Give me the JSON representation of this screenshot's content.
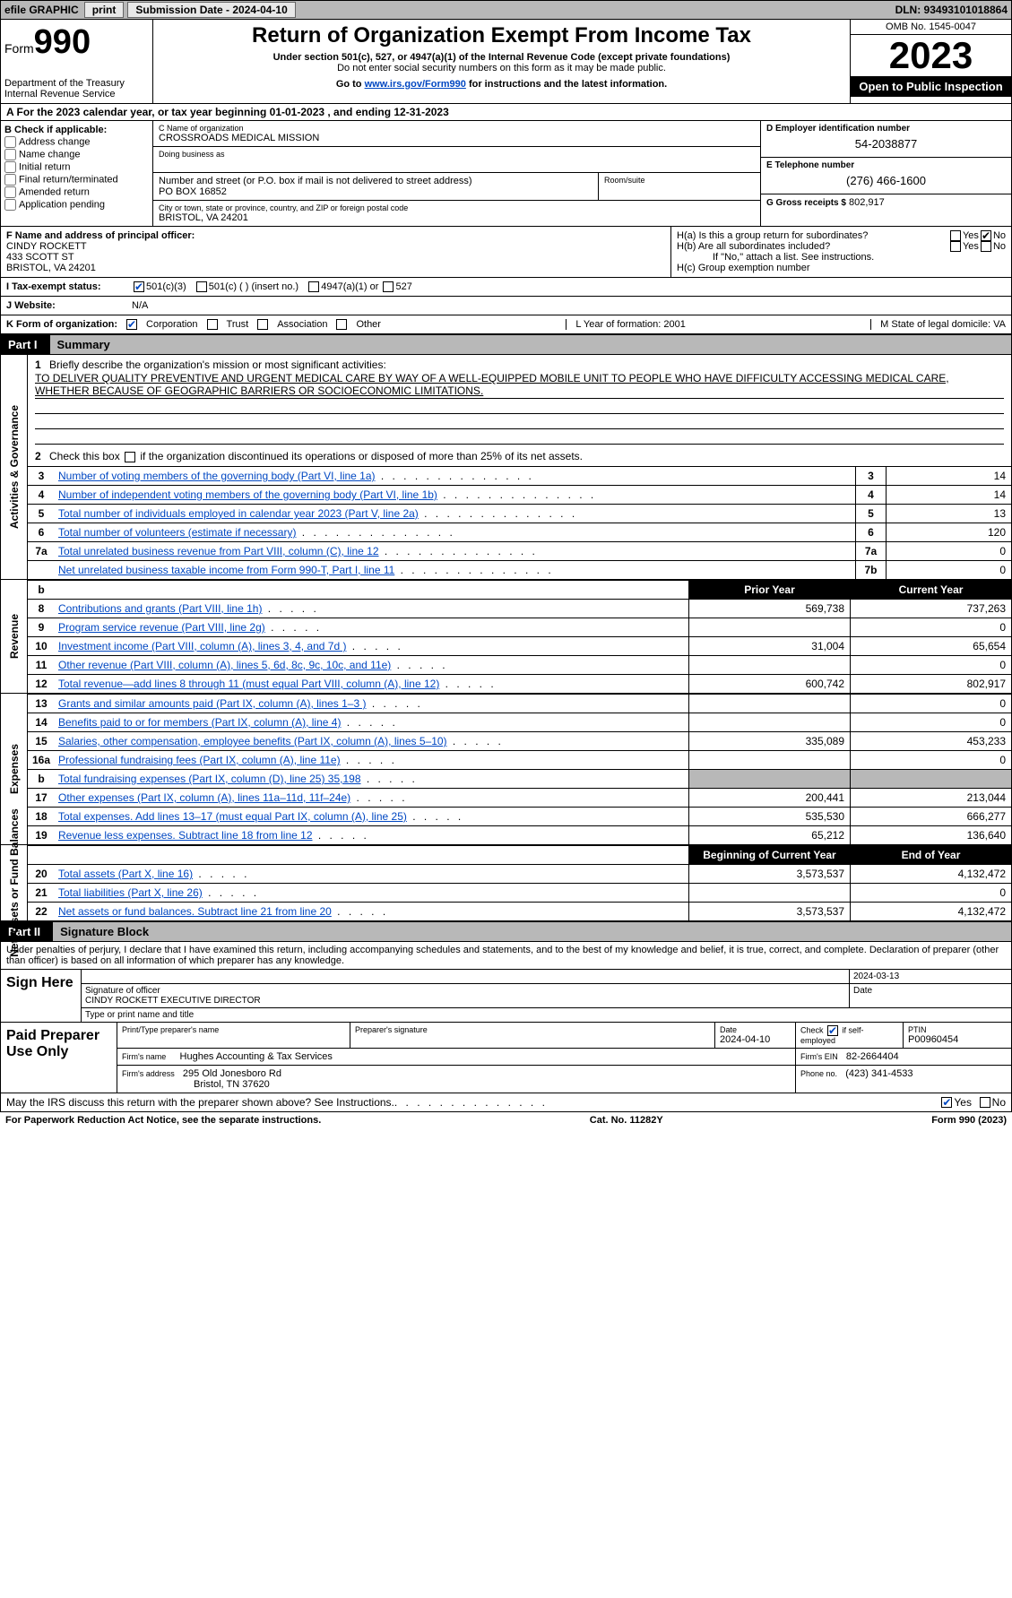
{
  "topbar": {
    "efile": "efile GRAPHIC",
    "print": "print",
    "sub_label": "Submission Date - 2024-04-10",
    "dln": "DLN: 93493101018864"
  },
  "header": {
    "form_word": "Form",
    "form_num": "990",
    "dept": "Department of the Treasury",
    "irs": "Internal Revenue Service",
    "title": "Return of Organization Exempt From Income Tax",
    "sub1": "Under section 501(c), 527, or 4947(a)(1) of the Internal Revenue Code (except private foundations)",
    "sub2": "Do not enter social security numbers on this form as it may be made public.",
    "sub3_pre": "Go to ",
    "sub3_link": "www.irs.gov/Form990",
    "sub3_post": " for instructions and the latest information.",
    "omb": "OMB No. 1545-0047",
    "year": "2023",
    "open": "Open to Public Inspection"
  },
  "period": "A For the 2023 calendar year, or tax year beginning 01-01-2023   , and ending 12-31-2023",
  "boxB": {
    "hdr": "B Check if applicable:",
    "opts": [
      "Address change",
      "Name change",
      "Initial return",
      "Final return/terminated",
      "Amended return",
      "Application pending"
    ]
  },
  "boxC": {
    "lbl_name": "C Name of organization",
    "org": "CROSSROADS MEDICAL MISSION",
    "lbl_dba": "Doing business as",
    "lbl_addr": "Number and street (or P.O. box if mail is not delivered to street address)",
    "addr": "PO BOX 16852",
    "lbl_suite": "Room/suite",
    "lbl_city": "City or town, state or province, country, and ZIP or foreign postal code",
    "city": "BRISTOL, VA  24201"
  },
  "boxD": {
    "lbl_ein": "D Employer identification number",
    "ein": "54-2038877",
    "lbl_phone": "E Telephone number",
    "phone": "(276) 466-1600",
    "lbl_gross": "G Gross receipts $",
    "gross": "802,917"
  },
  "officer": {
    "lbl": "F  Name and address of principal officer:",
    "name": "CINDY ROCKETT",
    "addr1": "433 SCOTT ST",
    "addr2": "BRISTOL, VA  24201",
    "ha": "H(a)  Is this a group return for subordinates?",
    "hb": "H(b)  Are all subordinates included?",
    "hb_note": "If \"No,\" attach a list. See instructions.",
    "hc": "H(c)  Group exemption number  ",
    "yes": "Yes",
    "no": "No"
  },
  "status": {
    "lbl": "I   Tax-exempt status:",
    "o1": "501(c)(3)",
    "o2": "501(c) (  ) (insert no.)",
    "o3": "4947(a)(1) or",
    "o4": "527"
  },
  "website": {
    "lbl": "J   Website:",
    "val": "N/A"
  },
  "formorg": {
    "k": "K Form of organization:",
    "corp": "Corporation",
    "trust": "Trust",
    "assoc": "Association",
    "other": "Other",
    "l": "L Year of formation: 2001",
    "m": "M State of legal domicile: VA"
  },
  "part1": {
    "num": "Part I",
    "title": "Summary"
  },
  "mission": {
    "q": "Briefly describe the organization's mission or most significant activities:",
    "text": "TO DELIVER QUALITY PREVENTIVE AND URGENT MEDICAL CARE BY WAY OF A WELL-EQUIPPED MOBILE UNIT TO PEOPLE WHO HAVE DIFFICULTY ACCESSING MEDICAL CARE, WHETHER BECAUSE OF GEOGRAPHIC BARRIERS OR SOCIOECONOMIC LIMITATIONS."
  },
  "line2": "Check this box       if the organization discontinued its operations or disposed of more than 25% of its net assets.",
  "tabs": {
    "gov": "Activities & Governance",
    "rev": "Revenue",
    "exp": "Expenses",
    "net": "Net Assets or Fund Balances"
  },
  "govlines": [
    {
      "n": "3",
      "d": "Number of voting members of the governing body (Part VI, line 1a)",
      "k": "3",
      "v": "14"
    },
    {
      "n": "4",
      "d": "Number of independent voting members of the governing body (Part VI, line 1b)",
      "k": "4",
      "v": "14"
    },
    {
      "n": "5",
      "d": "Total number of individuals employed in calendar year 2023 (Part V, line 2a)",
      "k": "5",
      "v": "13"
    },
    {
      "n": "6",
      "d": "Total number of volunteers (estimate if necessary)",
      "k": "6",
      "v": "120"
    },
    {
      "n": "7a",
      "d": "Total unrelated business revenue from Part VIII, column (C), line 12",
      "k": "7a",
      "v": "0"
    },
    {
      "n": "",
      "d": "Net unrelated business taxable income from Form 990-T, Part I, line 11",
      "k": "7b",
      "v": "0"
    }
  ],
  "colhdrs": {
    "b": "b",
    "prior": "Prior Year",
    "curr": "Current Year"
  },
  "revlines": [
    {
      "n": "8",
      "d": "Contributions and grants (Part VIII, line 1h)",
      "p": "569,738",
      "c": "737,263"
    },
    {
      "n": "9",
      "d": "Program service revenue (Part VIII, line 2g)",
      "p": "",
      "c": "0"
    },
    {
      "n": "10",
      "d": "Investment income (Part VIII, column (A), lines 3, 4, and 7d )",
      "p": "31,004",
      "c": "65,654"
    },
    {
      "n": "11",
      "d": "Other revenue (Part VIII, column (A), lines 5, 6d, 8c, 9c, 10c, and 11e)",
      "p": "",
      "c": "0"
    },
    {
      "n": "12",
      "d": "Total revenue—add lines 8 through 11 (must equal Part VIII, column (A), line 12)",
      "p": "600,742",
      "c": "802,917"
    }
  ],
  "explines": [
    {
      "n": "13",
      "d": "Grants and similar amounts paid (Part IX, column (A), lines 1–3 )",
      "p": "",
      "c": "0"
    },
    {
      "n": "14",
      "d": "Benefits paid to or for members (Part IX, column (A), line 4)",
      "p": "",
      "c": "0"
    },
    {
      "n": "15",
      "d": "Salaries, other compensation, employee benefits (Part IX, column (A), lines 5–10)",
      "p": "335,089",
      "c": "453,233"
    },
    {
      "n": "16a",
      "d": "Professional fundraising fees (Part IX, column (A), line 11e)",
      "p": "",
      "c": "0"
    },
    {
      "n": "b",
      "d": "Total fundraising expenses (Part IX, column (D), line 25) 35,198",
      "p": "shade",
      "c": "shade"
    },
    {
      "n": "17",
      "d": "Other expenses (Part IX, column (A), lines 11a–11d, 11f–24e)",
      "p": "200,441",
      "c": "213,044"
    },
    {
      "n": "18",
      "d": "Total expenses. Add lines 13–17 (must equal Part IX, column (A), line 25)",
      "p": "535,530",
      "c": "666,277"
    },
    {
      "n": "19",
      "d": "Revenue less expenses. Subtract line 18 from line 12",
      "p": "65,212",
      "c": "136,640"
    }
  ],
  "nethdrs": {
    "beg": "Beginning of Current Year",
    "end": "End of Year"
  },
  "netlines": [
    {
      "n": "20",
      "d": "Total assets (Part X, line 16)",
      "p": "3,573,537",
      "c": "4,132,472"
    },
    {
      "n": "21",
      "d": "Total liabilities (Part X, line 26)",
      "p": "",
      "c": "0"
    },
    {
      "n": "22",
      "d": "Net assets or fund balances. Subtract line 21 from line 20",
      "p": "3,573,537",
      "c": "4,132,472"
    }
  ],
  "part2": {
    "num": "Part II",
    "title": "Signature Block"
  },
  "sig": {
    "intro": "Under penalties of perjury, I declare that I have examined this return, including accompanying schedules and statements, and to the best of my knowledge and belief, it is true, correct, and complete. Declaration of preparer (other than officer) is based on all information of which preparer has any knowledge.",
    "here": "Sign Here",
    "sig_lbl": "Signature of officer",
    "officer": "CINDY ROCKETT  EXECUTIVE DIRECTOR",
    "type_lbl": "Type or print name and title",
    "date": "2024-03-13",
    "date_lbl": "Date"
  },
  "paid": {
    "hdr": "Paid Preparer Use Only",
    "name_lbl": "Print/Type preparer's name",
    "sig_lbl": "Preparer's signature",
    "date_lbl": "Date",
    "date": "2024-04-10",
    "check_lbl": "Check",
    "self": "if self-employed",
    "ptin_lbl": "PTIN",
    "ptin": "P00960454",
    "firm_lbl": "Firm's name",
    "firm": "Hughes Accounting & Tax Services",
    "ein_lbl": "Firm's EIN",
    "ein": "82-2664404",
    "addr_lbl": "Firm's address",
    "addr1": "295 Old Jonesboro Rd",
    "addr2": "Bristol, TN  37620",
    "phone_lbl": "Phone no.",
    "phone": "(423) 341-4533"
  },
  "discuss": {
    "q": "May the IRS discuss this return with the preparer shown above? See Instructions.",
    "yes": "Yes",
    "no": "No"
  },
  "footer": {
    "left": "For Paperwork Reduction Act Notice, see the separate instructions.",
    "mid": "Cat. No. 11282Y",
    "right_pre": "Form ",
    "right_b": "990",
    "right_post": " (2023)"
  }
}
